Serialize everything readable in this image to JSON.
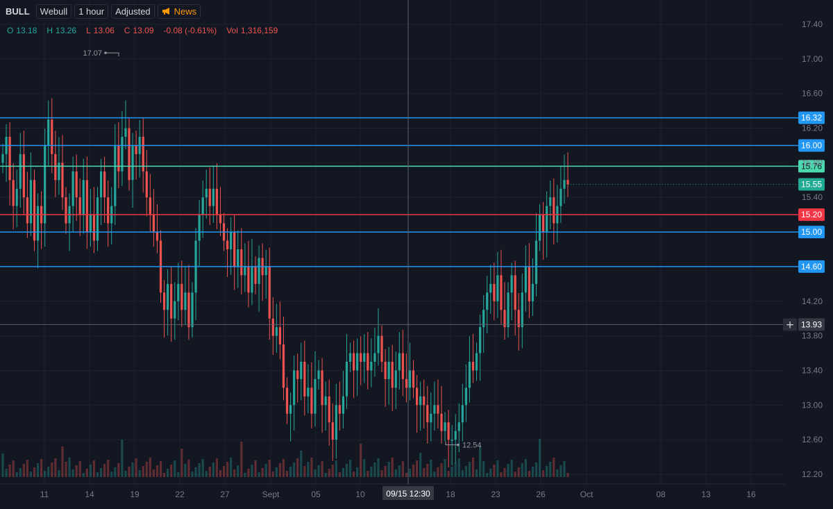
{
  "toolbar": {
    "symbol": "BULL",
    "exchange": "Webull",
    "interval": "1 hour",
    "adjustment": "Adjusted",
    "news": "News"
  },
  "legend": {
    "o_label": "O",
    "o": "13.18",
    "h_label": "H",
    "h": "13.26",
    "l_label": "L",
    "l": "13.06",
    "c_label": "C",
    "c": "13.09",
    "change": "-0.08 (-0.61%)",
    "vol_label": "Vol",
    "vol": "1,316,159"
  },
  "colors": {
    "background": "#131722",
    "up": "#26a69a",
    "down": "#ef5350",
    "level_blue": "#2196f3",
    "level_green": "#4cd9b0",
    "level_red": "#f23645",
    "grid": "#1e222d",
    "axis_text": "#787b86"
  },
  "chart_data": {
    "type": "candlestick",
    "y_axis": {
      "ticks": [
        "17.40",
        "17.00",
        "16.60",
        "16.20",
        "15.80",
        "15.40",
        "14.20",
        "13.80",
        "13.40",
        "13.00",
        "12.60",
        "12.20"
      ],
      "range": [
        12.05,
        17.55
      ]
    },
    "x_axis": {
      "labels": [
        "11",
        "14",
        "19",
        "22",
        "27",
        "Sept",
        "05",
        "10",
        "18",
        "23",
        "26",
        "Oct",
        "08",
        "13",
        "16"
      ]
    },
    "crosshair": {
      "time_label": "09/15 12:30",
      "price_label": "13.93",
      "price": 13.93
    },
    "price_levels": [
      {
        "label": "16.32",
        "value": 16.32,
        "color": "#2196f3"
      },
      {
        "label": "16.00",
        "value": 16.0,
        "color": "#2196f3"
      },
      {
        "label": "15.76",
        "value": 15.76,
        "color": "#4cd9b0"
      },
      {
        "label": "15.20",
        "value": 15.2,
        "color": "#f23645"
      },
      {
        "label": "15.00",
        "value": 15.0,
        "color": "#2196f3"
      },
      {
        "label": "14.60",
        "value": 14.6,
        "color": "#2196f3"
      }
    ],
    "last_price": {
      "label": "15.55",
      "value": 15.55,
      "color": "#22ab94"
    },
    "annotations": [
      {
        "label": "17.07",
        "value": 17.07
      },
      {
        "label": "12.54",
        "value": 12.54
      }
    ],
    "closes": [
      15.9,
      16.1,
      15.6,
      15.3,
      15.5,
      15.9,
      15.4,
      15.1,
      15.6,
      14.9,
      15.3,
      15.1,
      16.0,
      16.3,
      15.9,
      15.6,
      15.8,
      15.4,
      15.1,
      15.3,
      15.7,
      15.4,
      15.2,
      15.6,
      15.0,
      15.2,
      14.9,
      15.4,
      15.7,
      15.4,
      15.1,
      15.3,
      16.0,
      15.7,
      16.1,
      16.2,
      15.6,
      16.0,
      15.9,
      16.1,
      15.7,
      15.4,
      15.2,
      15.0,
      14.9,
      14.3,
      14.1,
      14.4,
      14.0,
      14.2,
      14.4,
      14.1,
      14.3,
      13.9,
      14.3,
      14.9,
      15.2,
      15.4,
      15.5,
      15.3,
      15.5,
      15.2,
      15.1,
      14.9,
      14.8,
      15.0,
      14.6,
      14.8,
      14.5,
      14.6,
      14.3,
      14.6,
      14.4,
      14.7,
      14.5,
      14.6,
      14.0,
      13.8,
      13.9,
      13.7,
      13.2,
      12.9,
      13.0,
      13.4,
      13.3,
      13.5,
      13.1,
      13.2,
      12.9,
      13.3,
      13.4,
      13.0,
      13.1,
      12.8,
      12.6,
      13.0,
      12.9,
      13.1,
      13.5,
      13.6,
      13.4,
      13.6,
      13.5,
      13.6,
      13.4,
      13.5,
      13.6,
      13.8,
      13.5,
      13.3,
      13.5,
      13.2,
      13.4,
      13.6,
      13.3,
      13.2,
      13.4,
      13.2,
      13.0,
      13.1,
      13.0,
      12.8,
      12.9,
      13.0,
      12.9,
      12.7,
      12.8,
      12.6,
      12.6,
      12.7,
      12.8,
      13.0,
      13.2,
      13.5,
      13.4,
      13.6,
      13.9,
      14.1,
      14.3,
      14.4,
      14.2,
      14.5,
      14.1,
      13.9,
      14.3,
      14.5,
      14.1,
      13.9,
      14.3,
      14.6,
      14.2,
      14.4,
      14.9,
      15.2,
      15.0,
      15.3,
      15.4,
      15.1,
      15.3,
      15.5,
      15.6,
      15.55
    ]
  }
}
